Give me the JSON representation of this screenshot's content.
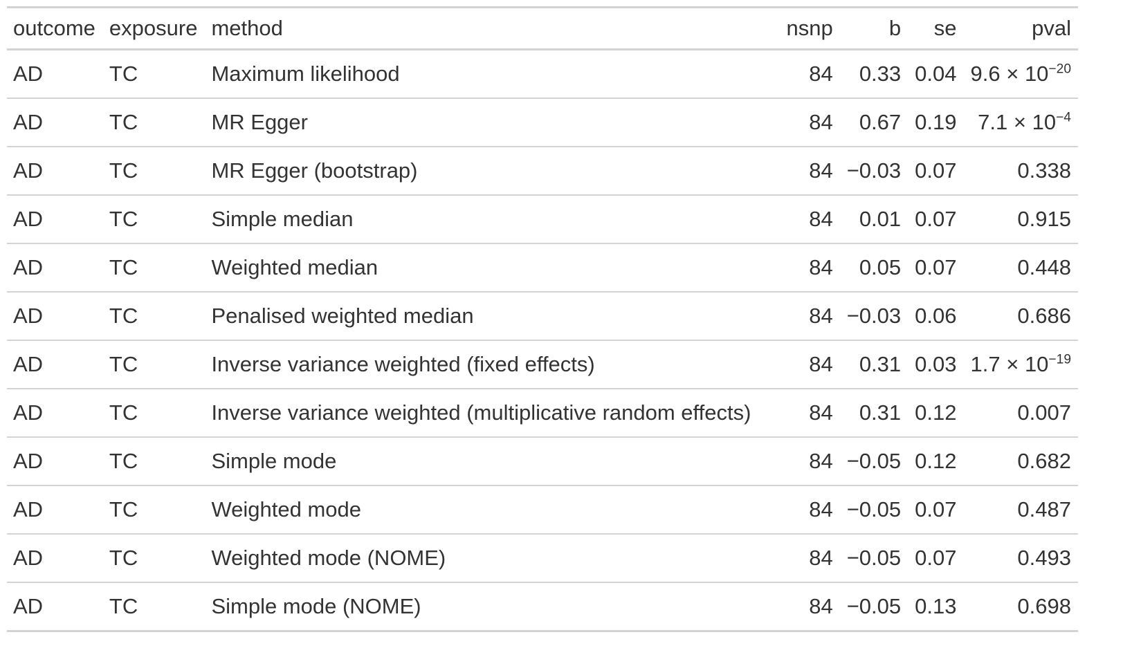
{
  "table": {
    "columns": [
      "outcome",
      "exposure",
      "method",
      "nsnp",
      "b",
      "se",
      "pval"
    ],
    "rows": [
      {
        "outcome": "AD",
        "exposure": "TC",
        "method": "Maximum likelihood",
        "nsnp": "84",
        "b": "0.33",
        "se": "0.04",
        "pval_mantissa": "9.6",
        "pval_times": " × 10",
        "pval_exp": "−20",
        "pval": ""
      },
      {
        "outcome": "AD",
        "exposure": "TC",
        "method": "MR Egger",
        "nsnp": "84",
        "b": "0.67",
        "se": "0.19",
        "pval_mantissa": "7.1",
        "pval_times": " × 10",
        "pval_exp": "−4",
        "pval": ""
      },
      {
        "outcome": "AD",
        "exposure": "TC",
        "method": "MR Egger (bootstrap)",
        "nsnp": "84",
        "b": "−0.03",
        "se": "0.07",
        "pval": "0.338"
      },
      {
        "outcome": "AD",
        "exposure": "TC",
        "method": "Simple median",
        "nsnp": "84",
        "b": "0.01",
        "se": "0.07",
        "pval": "0.915"
      },
      {
        "outcome": "AD",
        "exposure": "TC",
        "method": "Weighted median",
        "nsnp": "84",
        "b": "0.05",
        "se": "0.07",
        "pval": "0.448"
      },
      {
        "outcome": "AD",
        "exposure": "TC",
        "method": "Penalised weighted median",
        "nsnp": "84",
        "b": "−0.03",
        "se": "0.06",
        "pval": "0.686"
      },
      {
        "outcome": "AD",
        "exposure": "TC",
        "method": "Inverse variance weighted (fixed effects)",
        "nsnp": "84",
        "b": "0.31",
        "se": "0.03",
        "pval_mantissa": "1.7",
        "pval_times": " × 10",
        "pval_exp": "−19",
        "pval": ""
      },
      {
        "outcome": "AD",
        "exposure": "TC",
        "method": "Inverse variance weighted (multiplicative random effects)",
        "nsnp": "84",
        "b": "0.31",
        "se": "0.12",
        "pval": "0.007"
      },
      {
        "outcome": "AD",
        "exposure": "TC",
        "method": "Simple mode",
        "nsnp": "84",
        "b": "−0.05",
        "se": "0.12",
        "pval": "0.682"
      },
      {
        "outcome": "AD",
        "exposure": "TC",
        "method": "Weighted mode",
        "nsnp": "84",
        "b": "−0.05",
        "se": "0.07",
        "pval": "0.487"
      },
      {
        "outcome": "AD",
        "exposure": "TC",
        "method": "Weighted mode (NOME)",
        "nsnp": "84",
        "b": "−0.05",
        "se": "0.07",
        "pval": "0.493"
      },
      {
        "outcome": "AD",
        "exposure": "TC",
        "method": "Simple mode (NOME)",
        "nsnp": "84",
        "b": "−0.05",
        "se": "0.13",
        "pval": "0.698"
      }
    ]
  },
  "colors": {
    "text": "#333333",
    "rule": "#d3d3d3"
  }
}
